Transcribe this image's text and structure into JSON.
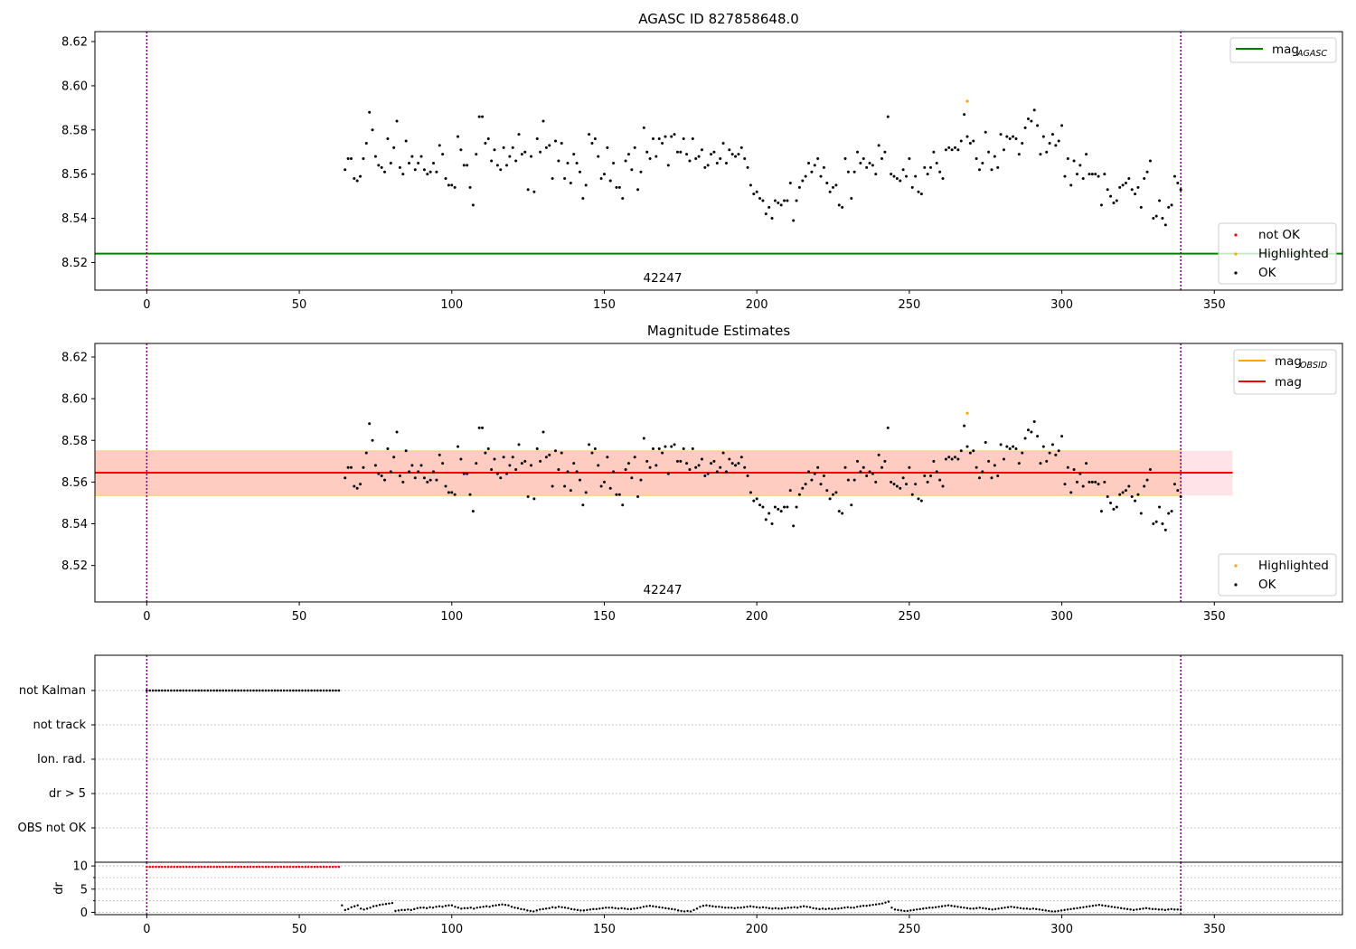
{
  "colors": {
    "ok": "#000000",
    "not_ok": "#ff0000",
    "highlighted": "#ffa500",
    "agasc_line": "#008000",
    "mag_line": "#ff0000",
    "obsid_line": "#ffa500",
    "obs_boundary": "#800080",
    "band_outer": "#ffc0cb",
    "band_inner": "#ffa07a",
    "grid": "#b0b0b0"
  },
  "chart_data": [
    {
      "type": "scatter",
      "title": "AGASC ID 827858648.0",
      "xlim": [
        -17,
        392
      ],
      "ylim": [
        8.5075,
        8.6245
      ],
      "xticks": [
        0,
        50,
        100,
        150,
        200,
        250,
        300,
        350
      ],
      "yticks": [
        8.52,
        8.54,
        8.56,
        8.58,
        8.6,
        8.62
      ],
      "obsid_annotation": "42247",
      "observation_boundaries_x": [
        0,
        339
      ],
      "mag_agasc": 8.524,
      "legend_lines": [
        {
          "label": "mag",
          "subscript": "AGASC",
          "color": "#008000"
        }
      ],
      "legend_points": [
        {
          "label": "not OK",
          "color": "#ff0000"
        },
        {
          "label": "Highlighted",
          "color": "#ffa500"
        },
        {
          "label": "OK",
          "color": "#000000"
        }
      ],
      "highlighted_points": [
        {
          "x": 269,
          "y": 8.593
        }
      ],
      "series": [
        {
          "name": "OK",
          "x_start": 65,
          "x_end": 339,
          "y": [
            8.562,
            8.567,
            8.567,
            8.558,
            8.557,
            8.559,
            8.567,
            8.574,
            8.588,
            8.58,
            8.568,
            8.564,
            8.563,
            8.561,
            8.576,
            8.565,
            8.572,
            8.584,
            8.563,
            8.56,
            8.575,
            8.565,
            8.568,
            8.562,
            8.565,
            8.568,
            8.562,
            8.56,
            8.561,
            8.565,
            8.561,
            8.573,
            8.569,
            8.558,
            8.555,
            8.555,
            8.554,
            8.577,
            8.571,
            8.564,
            8.564,
            8.554,
            8.546,
            8.569,
            8.586,
            8.586,
            8.574,
            8.576,
            8.566,
            8.571,
            8.564,
            8.562,
            8.572,
            8.564,
            8.568,
            8.572,
            8.566,
            8.578,
            8.569,
            8.57,
            8.553,
            8.568,
            8.552,
            8.576,
            8.57,
            8.584,
            8.572,
            8.573,
            8.558,
            8.575,
            8.566,
            8.574,
            8.558,
            8.565,
            8.556,
            8.569,
            8.565,
            8.561,
            8.549,
            8.555,
            8.578,
            8.574,
            8.576,
            8.568,
            8.558,
            8.56,
            8.572,
            8.557,
            8.565,
            8.554,
            8.554,
            8.549,
            8.566,
            8.569,
            8.562,
            8.572,
            8.553,
            8.561,
            8.581,
            8.57,
            8.567,
            8.576,
            8.568,
            8.576,
            8.574,
            8.577,
            8.564,
            8.577,
            8.578,
            8.57,
            8.57,
            8.576,
            8.569,
            8.566,
            8.576,
            8.567,
            8.568,
            8.571,
            8.563,
            8.564,
            8.569,
            8.57,
            8.565,
            8.567,
            8.574,
            8.565,
            8.571,
            8.569,
            8.568,
            8.569,
            8.572,
            8.567,
            8.563,
            8.555,
            8.551,
            8.552,
            8.549,
            8.548,
            8.542,
            8.545,
            8.54,
            8.548,
            8.547,
            8.546,
            8.548,
            8.548,
            8.556,
            8.539,
            8.548,
            8.554,
            8.557,
            8.559,
            8.565,
            8.561,
            8.564,
            8.567,
            8.559,
            8.563,
            8.556,
            8.552,
            8.554,
            8.555,
            8.546,
            8.545,
            8.567,
            8.561,
            8.549,
            8.561,
            8.57,
            8.565,
            8.567,
            8.563,
            8.565,
            8.564,
            8.56,
            8.573,
            8.567,
            8.57,
            8.586,
            8.56,
            8.559,
            8.558,
            8.557,
            8.562,
            8.559,
            8.567,
            8.554,
            8.559,
            8.552,
            8.551,
            8.563,
            8.56,
            8.563,
            8.57,
            8.565,
            8.561,
            8.558,
            8.571,
            8.572,
            8.571,
            8.572,
            8.571,
            8.575,
            8.587,
            8.577,
            8.574,
            8.575,
            8.567,
            8.562,
            8.565,
            8.579,
            8.57,
            8.562,
            8.568,
            8.563,
            8.578,
            8.571,
            8.577,
            8.576,
            8.577,
            8.576,
            8.569,
            8.574,
            8.581,
            8.585,
            8.584,
            8.589,
            8.582,
            8.569,
            8.577,
            8.57,
            8.574,
            8.578,
            8.573,
            8.575,
            8.582,
            8.559,
            8.567,
            8.555,
            8.566,
            8.56,
            8.564,
            8.558,
            8.569,
            8.56,
            8.56,
            8.56,
            8.559,
            8.546,
            8.56,
            8.553,
            8.55,
            8.547,
            8.548,
            8.554,
            8.555,
            8.556,
            8.558,
            8.553,
            8.551,
            8.554,
            8.545,
            8.558,
            8.561,
            8.566,
            8.54,
            8.541,
            8.548,
            8.54,
            8.537,
            8.545,
            8.546,
            8.559,
            8.556,
            8.553
          ]
        }
      ]
    },
    {
      "type": "scatter",
      "title": "Magnitude Estimates",
      "xlim": [
        -17,
        392
      ],
      "ylim": [
        8.5025,
        8.6265
      ],
      "xticks": [
        0,
        50,
        100,
        150,
        200,
        250,
        300,
        350
      ],
      "yticks": [
        8.52,
        8.54,
        8.56,
        8.58,
        8.6,
        8.62
      ],
      "obsid_annotation": "42247",
      "observation_boundaries_x": [
        0,
        339
      ],
      "mag": 8.5645,
      "mag_obsid": 8.5645,
      "mag_band": [
        8.5535,
        8.575
      ],
      "band_x_range": [
        -17,
        356
      ],
      "legend_lines": [
        {
          "label": "mag",
          "subscript": "OBSID",
          "color": "#ffa500"
        },
        {
          "label": "mag",
          "subscript": "",
          "color": "#ff0000"
        }
      ],
      "legend_points": [
        {
          "label": "Highlighted",
          "color": "#ffa500"
        },
        {
          "label": "OK",
          "color": "#000000"
        }
      ],
      "highlighted_points": [
        {
          "x": 269,
          "y": 8.593
        }
      ],
      "series_ref": "same OK points as panel 1"
    },
    {
      "type": "scatter",
      "title": "",
      "categories": [
        "not Kalman",
        "not track",
        "Ion. rad.",
        "dr > 5",
        "OBS not OK"
      ],
      "flag_not_kalman_x_range": [
        0,
        63
      ],
      "flag_not_kalman_step": 1,
      "observation_boundaries_x": [
        0,
        339
      ]
    },
    {
      "type": "scatter",
      "ylabel": "dr",
      "xlim": [
        -17,
        392
      ],
      "ylim": [
        -0.5,
        10.8
      ],
      "xticks": [
        0,
        50,
        100,
        150,
        200,
        250,
        300,
        350
      ],
      "yticks": [
        0,
        5,
        10
      ],
      "minor_yticks": [
        2.5,
        7.5
      ],
      "observation_boundaries_x": [
        0,
        339
      ],
      "not_ok_points": {
        "x_start": 0,
        "x_end": 63,
        "y": 9.8
      },
      "dr_series": {
        "x_start": 64,
        "x_end": 339,
        "y": [
          1.5,
          0.5,
          0.7,
          1.1,
          1.3,
          1.5,
          0.8,
          0.6,
          0.8,
          1.0,
          1.3,
          1.4,
          1.6,
          1.7,
          1.8,
          1.9,
          2.0,
          0.3,
          0.4,
          0.5,
          0.5,
          0.6,
          0.5,
          0.7,
          0.9,
          1.0,
          1.0,
          0.9,
          1.1,
          1.0,
          1.2,
          1.3,
          1.2,
          1.4,
          1.5,
          1.5,
          1.2,
          1.0,
          0.8,
          0.9,
          0.9,
          1.0,
          0.8,
          1.0,
          1.1,
          1.2,
          1.3,
          1.2,
          1.4,
          1.5,
          1.6,
          1.7,
          1.6,
          1.5,
          1.2,
          1.0,
          0.9,
          0.7,
          0.6,
          0.4,
          0.3,
          0.2,
          0.4,
          0.6,
          0.7,
          0.8,
          0.9,
          1.1,
          1.0,
          1.2,
          1.1,
          1.0,
          0.9,
          0.7,
          0.6,
          0.5,
          0.4,
          0.4,
          0.5,
          0.6,
          0.7,
          0.7,
          0.8,
          0.9,
          1.0,
          1.0,
          1.0,
          0.9,
          0.8,
          0.9,
          0.8,
          0.7,
          0.7,
          0.8,
          0.9,
          1.0,
          1.2,
          1.3,
          1.4,
          1.3,
          1.2,
          1.1,
          1.0,
          0.9,
          0.8,
          0.7,
          0.6,
          0.4,
          0.3,
          0.2,
          0.3,
          0.2,
          0.5,
          0.8,
          1.2,
          1.4,
          1.5,
          1.4,
          1.3,
          1.2,
          1.2,
          1.1,
          1.0,
          1.0,
          1.0,
          0.9,
          1.0,
          1.0,
          1.1,
          1.2,
          1.3,
          1.2,
          1.1,
          1.0,
          1.1,
          1.0,
          0.9,
          0.8,
          0.9,
          0.8,
          0.8,
          0.9,
          1.0,
          1.0,
          1.1,
          1.0,
          1.2,
          1.3,
          1.2,
          1.1,
          0.9,
          0.8,
          0.7,
          0.8,
          0.7,
          0.8,
          0.7,
          0.8,
          0.8,
          0.9,
          1.0,
          1.1,
          1.0,
          1.0,
          1.2,
          1.3,
          1.4,
          1.4,
          1.5,
          1.6,
          1.7,
          1.8,
          1.9,
          2.1,
          2.3,
          1.0,
          0.6,
          0.5,
          0.4,
          0.3,
          0.3,
          0.4,
          0.5,
          0.6,
          0.7,
          0.8,
          0.9,
          1.0,
          1.0,
          1.1,
          1.2,
          1.3,
          1.4,
          1.5,
          1.4,
          1.3,
          1.2,
          1.1,
          1.0,
          0.9,
          0.8,
          0.8,
          0.9,
          1.0,
          0.9,
          0.8,
          0.7,
          0.6,
          0.7,
          0.8,
          0.9,
          1.0,
          1.1,
          1.2,
          1.1,
          1.0,
          0.9,
          0.8,
          0.8,
          0.7,
          0.8,
          0.7,
          0.6,
          0.5,
          0.4,
          0.3,
          0.2,
          0.2,
          0.3,
          0.4,
          0.5,
          0.6,
          0.7,
          0.8,
          0.9,
          1.0,
          1.1,
          1.2,
          1.3,
          1.4,
          1.5,
          1.6,
          1.5,
          1.4,
          1.3,
          1.2,
          1.1,
          1.0,
          0.9,
          0.8,
          0.7,
          0.6,
          0.5,
          0.6,
          0.7,
          0.8,
          0.9,
          0.8,
          0.7,
          0.7,
          0.6,
          0.6,
          0.5,
          0.6,
          0.7,
          0.6,
          0.6,
          0.6
        ]
      }
    }
  ]
}
